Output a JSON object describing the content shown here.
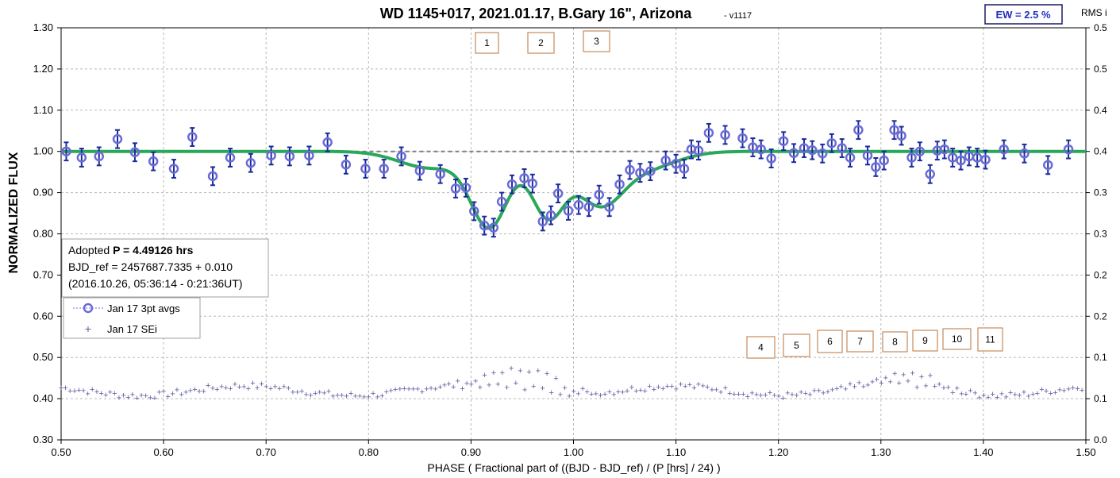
{
  "header": {
    "title": "WD 1145+017, 2021.01.17, B.Gary 16\", Arizona",
    "version": "- v1117",
    "ew_label": "EW = 2.5 %",
    "rms_label": "RMS i"
  },
  "info_box": {
    "line1_prefix": "Adopted ",
    "line1_bold": "P = 4.49126 hrs",
    "line2": "BJD_ref = 2457687.7335 + 0.010",
    "line3": "(2016.10.26, 05:36:14 - 0:21:36UT)"
  },
  "markers": [
    "1",
    "2",
    "3",
    "4",
    "5",
    "6",
    "7",
    "8",
    "9",
    "10",
    "11"
  ],
  "chart_data": {
    "type": "scatter",
    "xlabel": "PHASE ( Fractional part of ((BJD - BJD_ref) / (P [hrs] / 24) )",
    "ylabel": "NORMALIZED FLUX",
    "xlim": [
      0.5,
      1.5
    ],
    "ylim": [
      0.3,
      1.3
    ],
    "y2lim": [
      0.0,
      0.5
    ],
    "x_ticks": [
      "0.50",
      "0.60",
      "0.70",
      "0.80",
      "0.90",
      "1.00",
      "1.10",
      "1.20",
      "1.30",
      "1.40",
      "1.50"
    ],
    "y_ticks": [
      "0.30",
      "0.40",
      "0.50",
      "0.60",
      "0.70",
      "0.80",
      "0.90",
      "1.00",
      "1.10",
      "1.20",
      "1.30"
    ],
    "y2_ticks": [
      "0.0",
      "0.1",
      "0.1",
      "0.2",
      "0.2",
      "0.3",
      "0.3",
      "0.4",
      "0.4",
      "0.5",
      "0.5"
    ],
    "grid": true,
    "colors": {
      "avgs": "#6b6bd6",
      "errorbar": "#1a2a9c",
      "model": "#2aa85a",
      "baseline": "#7f7f7f",
      "sei": "#5a5aa0"
    },
    "series": [
      {
        "name": "Jan 17 3pt avgs",
        "x": [
          0.505,
          0.52,
          0.537,
          0.555,
          0.572,
          0.59,
          0.61,
          0.628,
          0.648,
          0.665,
          0.685,
          0.705,
          0.723,
          0.742,
          0.76,
          0.778,
          0.797,
          0.815,
          0.832,
          0.85,
          0.87,
          0.885,
          0.895,
          0.903,
          0.913,
          0.922,
          0.93,
          0.94,
          0.952,
          0.96,
          0.97,
          0.978,
          0.985,
          0.995,
          1.005,
          1.015,
          1.025,
          1.035,
          1.045,
          1.055,
          1.065,
          1.075,
          1.09,
          1.1,
          1.108,
          1.115,
          1.122,
          1.132,
          1.148,
          1.165,
          1.175,
          1.183,
          1.193,
          1.205,
          1.215,
          1.225,
          1.233,
          1.243,
          1.252,
          1.262,
          1.27,
          1.278,
          1.287,
          1.295,
          1.303,
          1.313,
          1.32,
          1.33,
          1.338,
          1.348,
          1.355,
          1.362,
          1.37,
          1.378,
          1.386,
          1.394,
          1.402,
          1.42,
          1.44,
          1.463,
          1.483
        ],
        "y": [
          1.0,
          0.985,
          0.988,
          1.03,
          0.998,
          0.976,
          0.958,
          1.035,
          0.94,
          0.985,
          0.972,
          0.99,
          0.988,
          0.99,
          1.022,
          0.968,
          0.958,
          0.958,
          0.988,
          0.953,
          0.945,
          0.91,
          0.912,
          0.855,
          0.82,
          0.815,
          0.878,
          0.92,
          0.935,
          0.922,
          0.83,
          0.845,
          0.898,
          0.856,
          0.87,
          0.865,
          0.895,
          0.865,
          0.92,
          0.955,
          0.948,
          0.952,
          0.978,
          0.97,
          0.958,
          1.005,
          1.002,
          1.045,
          1.04,
          1.032,
          1.01,
          1.005,
          0.983,
          1.025,
          0.996,
          1.008,
          1.003,
          0.995,
          1.02,
          1.008,
          0.985,
          1.052,
          0.99,
          0.962,
          0.978,
          1.052,
          1.038,
          0.985,
          1.0,
          0.945,
          1.002,
          1.005,
          0.985,
          0.978,
          0.988,
          0.985,
          0.98,
          1.005,
          0.995,
          0.967,
          1.005
        ],
        "err": 0.022
      },
      {
        "name": "Jan 17 SEi",
        "x": [],
        "y2": []
      }
    ],
    "model": {
      "baseline": 1.0,
      "dips": [
        {
          "center": 0.918,
          "depth": 0.18,
          "width": 0.018
        },
        {
          "center": 0.975,
          "depth": 0.155,
          "width": 0.016
        },
        {
          "center": 1.025,
          "depth": 0.12,
          "width": 0.022
        },
        {
          "center": 0.86,
          "depth": 0.04,
          "width": 0.03
        },
        {
          "center": 1.07,
          "depth": 0.04,
          "width": 0.03
        }
      ]
    },
    "legend_position": "left",
    "legend": [
      "Jan 17 3pt avgs",
      "Jan 17 SEi"
    ]
  }
}
